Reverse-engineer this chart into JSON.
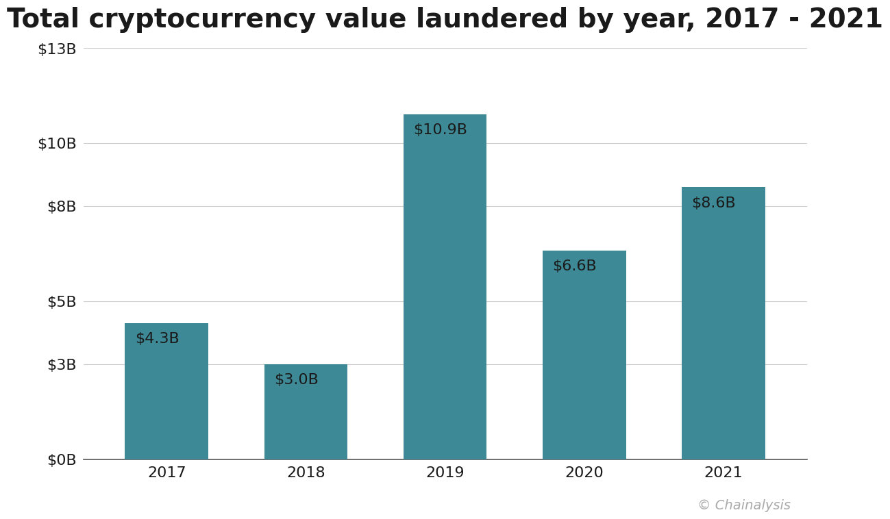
{
  "title": "Total cryptocurrency value laundered by year, 2017 - 2021",
  "categories": [
    "2017",
    "2018",
    "2019",
    "2020",
    "2021"
  ],
  "values": [
    4.3,
    3.0,
    10.9,
    6.6,
    8.6
  ],
  "labels": [
    "$4.3B",
    "$3.0B",
    "$10.9B",
    "$6.6B",
    "$8.6B"
  ],
  "bar_color": "#3d8a96",
  "background_color": "#ffffff",
  "ylim": [
    0,
    13
  ],
  "yticks": [
    0,
    3,
    5,
    8,
    10,
    13
  ],
  "ytick_labels": [
    "$0B",
    "$3B",
    "$5B",
    "$8B",
    "$10B",
    "$13B"
  ],
  "grid_color": "#cccccc",
  "text_color": "#1a1a1a",
  "title_fontsize": 28,
  "tick_fontsize": 16,
  "label_fontsize": 16,
  "credit": "© Chainalysis",
  "credit_fontsize": 14,
  "bar_width": 0.6
}
